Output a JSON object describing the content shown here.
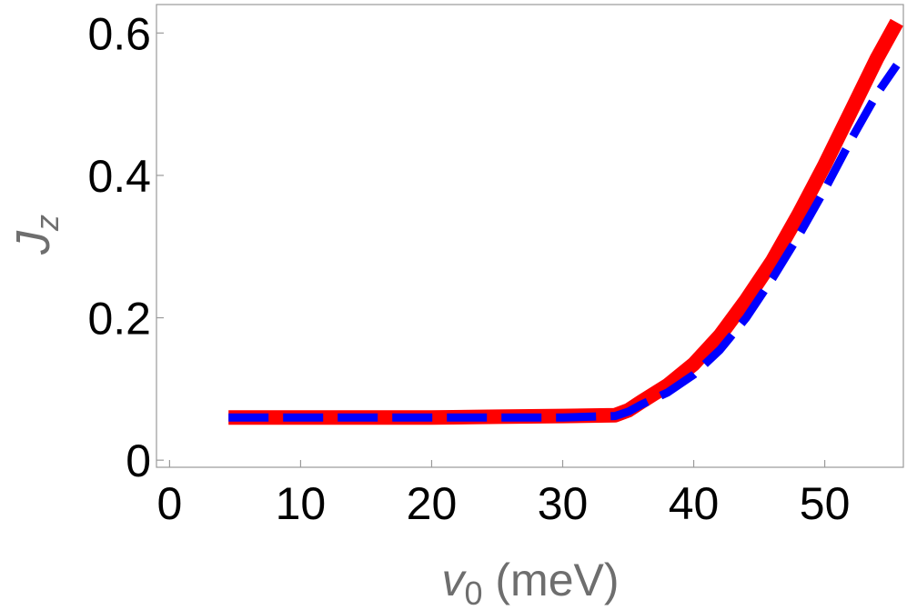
{
  "chart_data": {
    "type": "line",
    "xlabel": {
      "symbol": "v",
      "subscript": "0",
      "unit": " (meV)"
    },
    "ylabel": {
      "symbol": "J",
      "subscript": "z"
    },
    "xlim": [
      -1,
      56
    ],
    "ylim": [
      -0.01,
      0.64
    ],
    "xticks": [
      0,
      10,
      20,
      30,
      40,
      50
    ],
    "xtick_labels": [
      "0",
      "10",
      "20",
      "30",
      "40",
      "50"
    ],
    "yticks": [
      0,
      0.2,
      0.4,
      0.6
    ],
    "ytick_labels": [
      "0",
      "0.2",
      "0.4",
      "0.6"
    ],
    "grid": false,
    "legend": "none",
    "series": [
      {
        "color": "#ff0000",
        "style": "solid",
        "x": [
          4.5,
          10,
          15,
          20,
          25,
          30,
          34,
          35,
          36,
          38,
          40,
          42,
          44,
          46,
          48,
          50,
          52,
          54,
          55.5
        ],
        "y": [
          0.06,
          0.06,
          0.06,
          0.06,
          0.061,
          0.062,
          0.063,
          0.07,
          0.082,
          0.105,
          0.135,
          0.175,
          0.225,
          0.28,
          0.345,
          0.415,
          0.49,
          0.565,
          0.615
        ]
      },
      {
        "color": "#0000ff",
        "style": "dashed",
        "x": [
          4.5,
          10,
          15,
          20,
          25,
          30,
          34,
          35,
          36,
          38,
          40,
          42,
          44,
          46,
          48,
          50,
          52,
          54,
          55.5
        ],
        "y": [
          0.06,
          0.06,
          0.06,
          0.06,
          0.06,
          0.06,
          0.062,
          0.068,
          0.078,
          0.095,
          0.12,
          0.155,
          0.2,
          0.255,
          0.315,
          0.38,
          0.45,
          0.515,
          0.555
        ]
      }
    ]
  }
}
